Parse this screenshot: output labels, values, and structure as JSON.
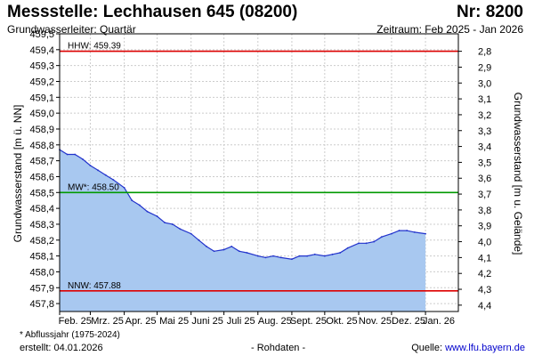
{
  "header": {
    "title": "Messstelle: Lechhausen 645 (08200)",
    "number": "Nr: 8200",
    "aquifer": "Grundwasserleiter: Quartär",
    "period": "Zeitraum: Feb 2025 - Jan 2026"
  },
  "footer": {
    "footnote": "* Abflussjahr (1975-2024)",
    "created": "erstellt:  04.01.2026",
    "rawdata": "- Rohdaten -",
    "source_prefix": "Quelle: ",
    "source_link": "www.lfu.bayern.de"
  },
  "colors": {
    "fill": "#a8c8f0",
    "line": "#2233cc",
    "hhw": "#dd0000",
    "nnw": "#dd0000",
    "mw": "#009900",
    "grid": "#cccccc"
  },
  "chart_data": {
    "type": "area",
    "ylabel": "Grundwasserstand [m ü. NN]",
    "ylabel_right": "Grundwasserstand [m u. Gelände]",
    "ylim": [
      457.75,
      459.5
    ],
    "yticks": [
      "457,8",
      "457,9",
      "458,0",
      "458,1",
      "458,2",
      "458,3",
      "458,4",
      "458,5",
      "458,6",
      "458,7",
      "458,8",
      "458,9",
      "459,0",
      "459,1",
      "459,2",
      "459,3",
      "459,4",
      "459,5"
    ],
    "yticks_right": [
      "2,8",
      "2,9",
      "3,0",
      "3,1",
      "3,2",
      "3,3",
      "3,4",
      "3,5",
      "3,6",
      "3,7",
      "3,8",
      "3,9",
      "4,0",
      "4,1",
      "4,2",
      "4,3",
      "4,4"
    ],
    "right_reference": 462.19,
    "xlim": [
      "2025-02-01",
      "2026-01-31"
    ],
    "xticks": [
      {
        "date": "2025-02-01",
        "label": "Feb. 25"
      },
      {
        "date": "2025-03-01",
        "label": "Mrz. 25"
      },
      {
        "date": "2025-04-01",
        "label": "Apr. 25"
      },
      {
        "date": "2025-05-01",
        "label": "Mai 25"
      },
      {
        "date": "2025-06-01",
        "label": "Juni 25"
      },
      {
        "date": "2025-07-01",
        "label": "Juli 25"
      },
      {
        "date": "2025-08-01",
        "label": "Aug. 25"
      },
      {
        "date": "2025-09-01",
        "label": "Sept. 25"
      },
      {
        "date": "2025-10-01",
        "label": "Okt. 25"
      },
      {
        "date": "2025-11-01",
        "label": "Nov. 25"
      },
      {
        "date": "2025-12-01",
        "label": "Dez. 25"
      },
      {
        "date": "2026-01-01",
        "label": "Jan. 26"
      }
    ],
    "reference_lines": [
      {
        "label": "HHW: 459.39",
        "value": 459.39,
        "color": "#dd0000"
      },
      {
        "label": "MW*: 458.50",
        "value": 458.5,
        "color": "#009900"
      },
      {
        "label": "NNW: 457.88",
        "value": 457.88,
        "color": "#dd0000"
      }
    ],
    "series": [
      {
        "x": [
          "2025-02-01",
          "2025-02-08",
          "2025-02-15",
          "2025-02-22",
          "2025-03-01",
          "2025-03-08",
          "2025-03-15",
          "2025-03-22",
          "2025-04-01",
          "2025-04-08",
          "2025-04-15",
          "2025-04-22",
          "2025-05-01",
          "2025-05-08",
          "2025-05-15",
          "2025-05-22",
          "2025-06-01",
          "2025-06-08",
          "2025-06-15",
          "2025-06-22",
          "2025-07-01",
          "2025-07-08",
          "2025-07-15",
          "2025-07-22",
          "2025-08-01",
          "2025-08-08",
          "2025-08-15",
          "2025-08-22",
          "2025-09-01",
          "2025-09-08",
          "2025-09-15",
          "2025-09-22",
          "2025-10-01",
          "2025-10-08",
          "2025-10-15",
          "2025-10-22",
          "2025-11-01",
          "2025-11-08",
          "2025-11-15",
          "2025-11-22",
          "2025-12-01",
          "2025-12-08",
          "2025-12-15",
          "2025-12-22",
          "2026-01-01"
        ],
        "y": [
          458.77,
          458.74,
          458.74,
          458.71,
          458.67,
          458.64,
          458.61,
          458.58,
          458.53,
          458.45,
          458.42,
          458.38,
          458.35,
          458.31,
          458.3,
          458.27,
          458.24,
          458.2,
          458.16,
          458.13,
          458.14,
          458.16,
          458.13,
          458.12,
          458.1,
          458.09,
          458.1,
          458.09,
          458.08,
          458.1,
          458.1,
          458.11,
          458.1,
          458.11,
          458.12,
          458.15,
          458.18,
          458.18,
          458.19,
          458.22,
          458.24,
          458.26,
          458.26,
          458.25,
          458.24
        ]
      }
    ]
  }
}
